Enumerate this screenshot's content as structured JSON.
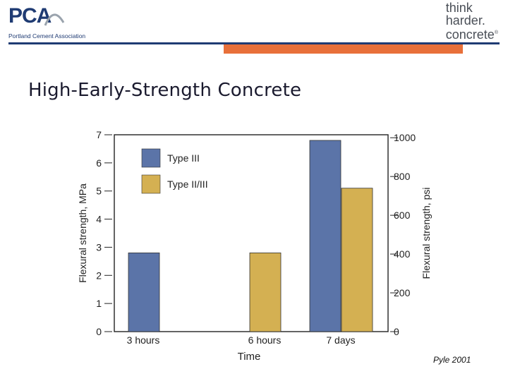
{
  "header": {
    "logo_text": "PCA",
    "logo_subtitle": "Portland Cement Association",
    "tagline_lines": [
      "think",
      "harder.",
      "concrete"
    ],
    "tagline_mark": "®"
  },
  "colors": {
    "navy": "#1f3b73",
    "orange": "#e8703a",
    "type3": "#5b74a8",
    "type23": "#d4b052"
  },
  "slide": {
    "title": "High-Early-Strength Concrete"
  },
  "chart_data": {
    "type": "bar",
    "categories": [
      "3 hours",
      "6 hours",
      "7 days"
    ],
    "series": [
      {
        "name": "Type III",
        "color": "#5b74a8",
        "values": [
          2.8,
          null,
          6.8
        ]
      },
      {
        "name": "Type II/III",
        "color": "#d4b052",
        "values": [
          null,
          2.8,
          5.1
        ]
      }
    ],
    "xlabel": "Time",
    "ylabel": "Flexural strength, MPa",
    "ylabel_right": "Flexural strength, psi",
    "ylim": [
      0,
      7
    ],
    "yticks": [
      0,
      1,
      2,
      3,
      4,
      5,
      6,
      7
    ],
    "ylim_right": [
      0,
      1015.3
    ],
    "yticks_right": [
      0,
      200,
      400,
      600,
      800,
      1000
    ],
    "legend": "top-left",
    "grid": false
  },
  "credit": "Pyle 2001"
}
